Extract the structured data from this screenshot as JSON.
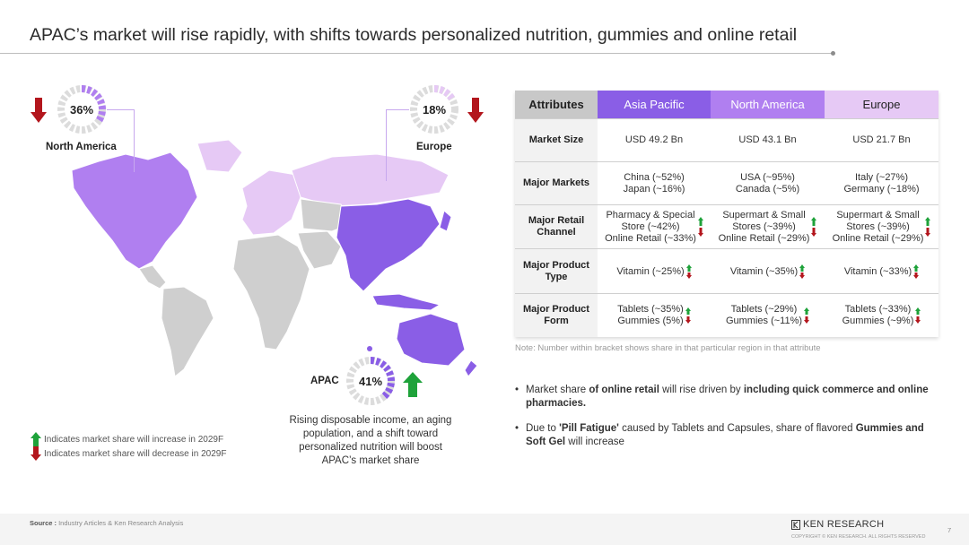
{
  "title": "APAC’s market will rise rapidly, with shifts towards personalized nutrition, gummies and online retail",
  "colors": {
    "apac": "#8a5ee6",
    "north_america": "#b07ff0",
    "europe": "#e6c9f5",
    "up": "#1ea23a",
    "down": "#b3161d"
  },
  "regions": {
    "north_america": {
      "name": "North America",
      "share": "36%",
      "trend": "down"
    },
    "europe": {
      "name": "Europe",
      "share": "18%",
      "trend": "down"
    },
    "apac": {
      "name": "APAC",
      "share": "41%",
      "trend": "up"
    }
  },
  "apac_caption": "Rising disposable income, an aging population, and a shift toward personalized nutrition will boost APAC’s market share",
  "legend": {
    "increase": "Indicates market share will increase in 2029F",
    "decrease": "Indicates market share will decrease in 2029F"
  },
  "table": {
    "headers": [
      "Attributes",
      "Asia Pacific",
      "North America",
      "Europe"
    ],
    "rows": {
      "market_size": {
        "label": "Market Size",
        "apac": "USD 49.2 Bn",
        "na": "USD 43.1 Bn",
        "eu": "USD 21.7 Bn"
      },
      "major_markets": {
        "label": "Major Markets",
        "apac_1": "China (~52%)",
        "apac_2": "Japan (~16%)",
        "na_1": "USA (~95%)",
        "na_2": "Canada (~5%)",
        "eu_1": "Italy (~27%)",
        "eu_2": "Germany (~18%)"
      },
      "retail_channel": {
        "label": "Major Retail Channel",
        "apac_1": "Pharmacy & Special",
        "apac_2": "Store (~42%)",
        "apac_3": "Online Retail (~33%)",
        "na_1": "Supermart & Small",
        "na_2": "Stores (~39%)",
        "na_3": "Online Retail (~29%)",
        "eu_1": "Supermart & Small",
        "eu_2": "Stores (~39%)",
        "eu_3": "Online Retail (~29%)"
      },
      "product_type": {
        "label": "Major Product Type",
        "apac": "Vitamin (~25%)",
        "na": "Vitamin (~35%)",
        "eu": "Vitamin (~33%)"
      },
      "product_form": {
        "label": "Major Product Form",
        "apac_1": "Tablets (~35%)",
        "apac_2": "Gummies (5%)",
        "na_1": "Tablets (~29%)",
        "na_2": "Gummies (~11%)",
        "eu_1": "Tablets (~33%)",
        "eu_2": "Gummies (~9%)"
      }
    }
  },
  "note": "Note: Number within bracket shows share in that particular region in that attribute",
  "bullets": {
    "b1_a": "Market share ",
    "b1_b": "of online retail",
    "b1_c": " will rise driven by ",
    "b1_d": "including quick commerce and online pharmacies.",
    "b2_a": "Due to ",
    "b2_b": "'Pill Fatigue'",
    "b2_c": " caused by Tablets and Capsules, share of flavored ",
    "b2_d": "Gummies and Soft Gel",
    "b2_e": " will increase"
  },
  "footer": {
    "source_label": "Source :",
    "source_text": " Industry Articles & Ken Research Analysis",
    "logo": "KEN RESEARCH",
    "copyright": "COPYRIGHT © KEN RESEARCH. ALL RIGHTS RESERVED",
    "page": "7"
  }
}
